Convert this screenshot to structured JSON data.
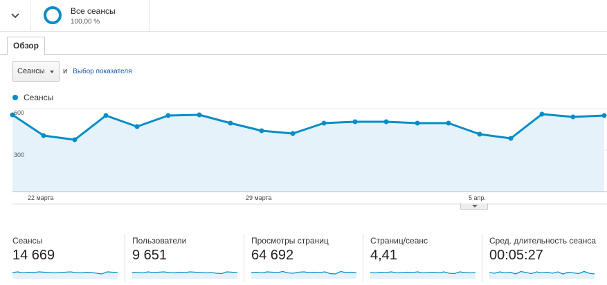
{
  "segment": {
    "toggle_icon": "chevron-down-icon",
    "title": "Все сеансы",
    "subtitle": "100,00 %",
    "ring_color": "#058dc7"
  },
  "tabs": [
    {
      "label": "Обзор",
      "active": true
    }
  ],
  "controls": {
    "metric_select": "Сеансы",
    "conjunction": "и",
    "metric_link": "Выбор показателя"
  },
  "legend": {
    "label": "Сеансы",
    "color": "#058dc7"
  },
  "chart_data": {
    "type": "area",
    "series": [
      {
        "name": "Сеансы",
        "values": [
          555,
          405,
          375,
          550,
          470,
          550,
          555,
          495,
          440,
          420,
          495,
          505,
          505,
          495,
          495,
          415,
          385,
          560,
          540,
          550
        ]
      }
    ],
    "x_tick_labels": [
      "22 марта",
      "29 марта",
      "5 апр."
    ],
    "y_tick_labels": [
      "600",
      "300"
    ],
    "ylim": [
      0,
      600
    ],
    "grid": true,
    "line_color": "#058dc7",
    "fill_color": "#e5f2f9"
  },
  "metrics": [
    {
      "label": "Сеансы",
      "value": "14 669",
      "spark": [
        0.5,
        0.6,
        0.45,
        0.55,
        0.5,
        0.6,
        0.55,
        0.5,
        0.45,
        0.5,
        0.55,
        0.6,
        0.5,
        0.45,
        0.55,
        0.5,
        0.4,
        0.3,
        0.6,
        0.55,
        0.5
      ]
    },
    {
      "label": "Пользователи",
      "value": "9 651",
      "spark": [
        0.55,
        0.5,
        0.45,
        0.6,
        0.5,
        0.55,
        0.6,
        0.5,
        0.45,
        0.55,
        0.5,
        0.6,
        0.55,
        0.5,
        0.45,
        0.5,
        0.4,
        0.35,
        0.6,
        0.55,
        0.5
      ]
    },
    {
      "label": "Просмотры страниц",
      "value": "64 692",
      "spark": [
        0.5,
        0.55,
        0.45,
        0.6,
        0.55,
        0.5,
        0.65,
        0.45,
        0.4,
        0.55,
        0.6,
        0.5,
        0.55,
        0.5,
        0.6,
        0.35,
        0.3,
        0.65,
        0.5,
        0.55,
        0.45
      ]
    },
    {
      "label": "Страниц/сеанс",
      "value": "4,41",
      "spark": [
        0.5,
        0.45,
        0.55,
        0.5,
        0.6,
        0.45,
        0.5,
        0.55,
        0.5,
        0.6,
        0.45,
        0.5,
        0.55,
        0.45,
        0.6,
        0.4,
        0.35,
        0.6,
        0.5,
        0.45,
        0.5
      ]
    },
    {
      "label": "Сред. длительность сеанса",
      "value": "00:05:27",
      "spark": [
        0.5,
        0.4,
        0.6,
        0.45,
        0.55,
        0.3,
        0.65,
        0.5,
        0.35,
        0.6,
        0.45,
        0.55,
        0.4,
        0.6,
        0.3,
        0.55,
        0.45,
        0.35,
        0.65,
        0.4,
        0.3
      ]
    }
  ]
}
